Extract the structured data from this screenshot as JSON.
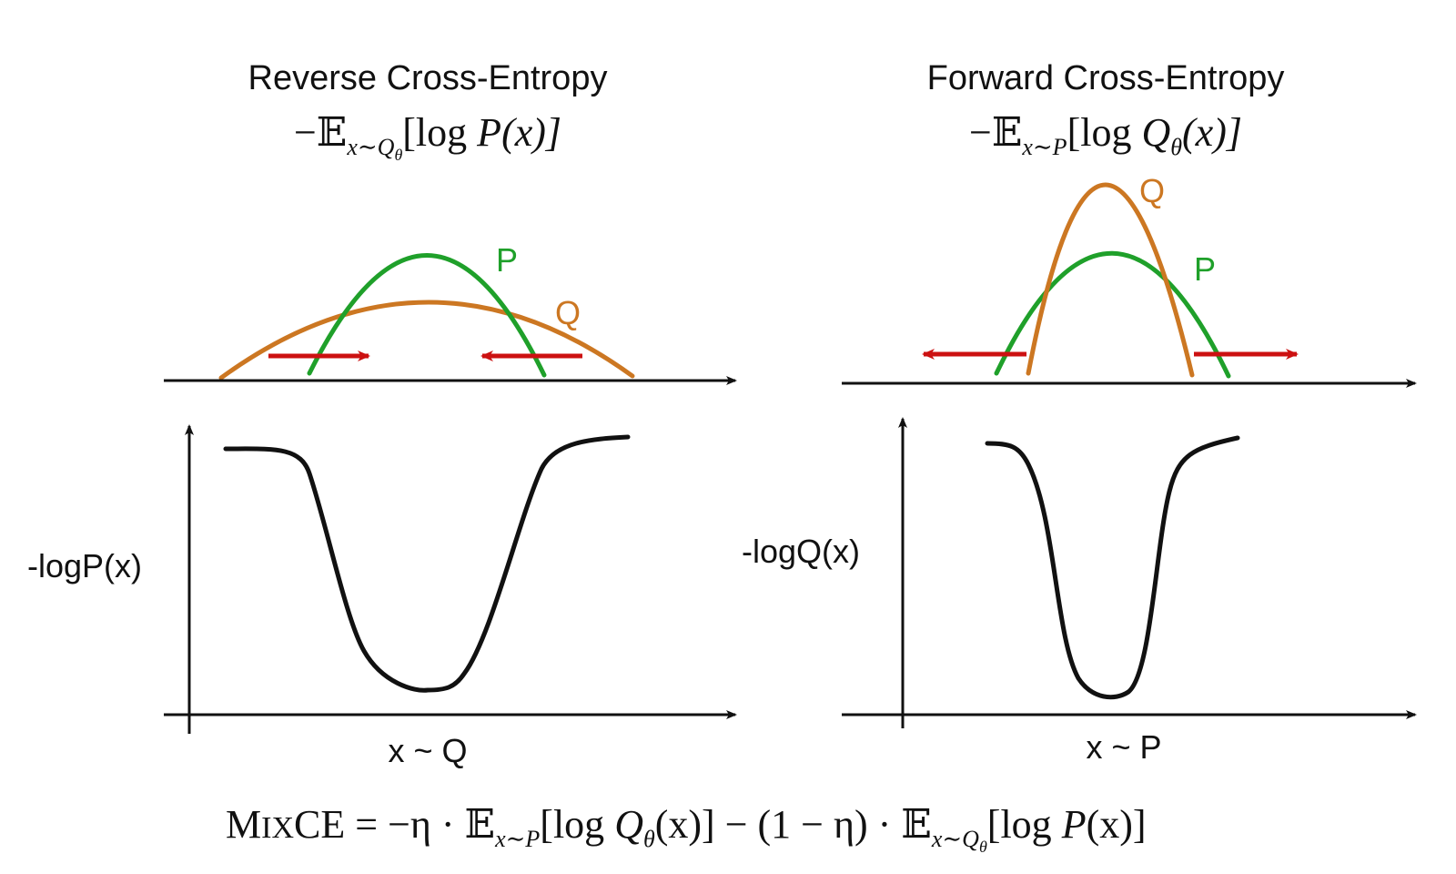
{
  "left_panel": {
    "title": "Reverse Cross-Entropy",
    "formula": {
      "minus_E": "−𝔼",
      "subscript": "x∼Q",
      "subscript_theta": "θ",
      "bracket": "[log ",
      "dist": "P",
      "arg": "(x)]"
    },
    "label_p": "P",
    "label_q": "Q",
    "ylabel": "-logP(x)",
    "xlabel": "x ~ Q"
  },
  "right_panel": {
    "title": "Forward Cross-Entropy",
    "formula": {
      "minus_E": "−𝔼",
      "subscript": "x∼P",
      "bracket": "[log ",
      "dist": "Q",
      "theta": "θ",
      "arg": "(x)]"
    },
    "label_q": "Q",
    "label_p": "P",
    "ylabel": "-logQ(x)",
    "xlabel": "x ~ P"
  },
  "bottom_formula": {
    "name_big": "M",
    "name_small": "IX",
    "name_end": "CE",
    "eq": " = −η · 𝔼",
    "sub1": "x∼P",
    "part1": "[log ",
    "q": "Q",
    "theta": "θ",
    "part1_end": "(x)] − (1 − η) · 𝔼",
    "sub2": "x∼Q",
    "sub2_theta": "θ",
    "part2": "[log ",
    "p": "P",
    "part2_end": "(x)]"
  },
  "colors": {
    "p_curve": "#1fa02a",
    "q_curve": "#cc7722",
    "arrow": "#cc1111",
    "axis": "#111111"
  }
}
